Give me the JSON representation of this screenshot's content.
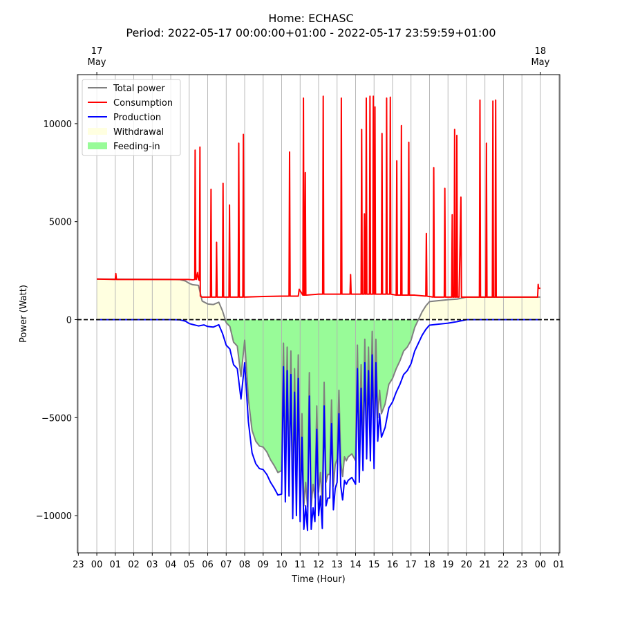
{
  "title": "Home: ECHASC",
  "subtitle": "Period: 2022-05-17 00:00:00+01:00 - 2022-05-17 23:59:59+01:00",
  "chart_data": {
    "type": "line",
    "xlabel": "Time (Hour)",
    "ylabel": "Power (Watt)",
    "xlim": [
      -1.05,
      25.05
    ],
    "ylim": [
      -11900,
      12500
    ],
    "x_ticks": [
      {
        "x": -1,
        "label": "23"
      },
      {
        "x": 0,
        "label": "00"
      },
      {
        "x": 1,
        "label": "01"
      },
      {
        "x": 2,
        "label": "02"
      },
      {
        "x": 3,
        "label": "03"
      },
      {
        "x": 4,
        "label": "04"
      },
      {
        "x": 5,
        "label": "05"
      },
      {
        "x": 6,
        "label": "06"
      },
      {
        "x": 7,
        "label": "07"
      },
      {
        "x": 8,
        "label": "08"
      },
      {
        "x": 9,
        "label": "09"
      },
      {
        "x": 10,
        "label": "10"
      },
      {
        "x": 11,
        "label": "11"
      },
      {
        "x": 12,
        "label": "12"
      },
      {
        "x": 13,
        "label": "13"
      },
      {
        "x": 14,
        "label": "14"
      },
      {
        "x": 15,
        "label": "15"
      },
      {
        "x": 16,
        "label": "16"
      },
      {
        "x": 17,
        "label": "17"
      },
      {
        "x": 18,
        "label": "18"
      },
      {
        "x": 19,
        "label": "19"
      },
      {
        "x": 20,
        "label": "20"
      },
      {
        "x": 21,
        "label": "21"
      },
      {
        "x": 22,
        "label": "22"
      },
      {
        "x": 23,
        "label": "23"
      },
      {
        "x": 24,
        "label": "00"
      },
      {
        "x": 25,
        "label": "01"
      }
    ],
    "top_ticks": [
      {
        "x": 0,
        "line1": "17",
        "line2": "May"
      },
      {
        "x": 24,
        "line1": "18",
        "line2": "May"
      }
    ],
    "y_ticks": [
      {
        "y": 10000,
        "label": "10000"
      },
      {
        "y": 5000,
        "label": "5000"
      },
      {
        "y": 0,
        "label": "0"
      },
      {
        "y": -5000,
        "label": "−5000"
      },
      {
        "y": -10000,
        "label": "−10000"
      }
    ],
    "grid": "vertical",
    "zero_line": true,
    "legend_position": "upper left",
    "legend": [
      {
        "label": "Total power",
        "kind": "line",
        "color": "#808080"
      },
      {
        "label": "Consumption",
        "kind": "line",
        "color": "#ff0000"
      },
      {
        "label": "Production",
        "kind": "line",
        "color": "#0000ff"
      },
      {
        "label": "Withdrawal",
        "kind": "fill",
        "color": "#ffffe0"
      },
      {
        "label": "Feeding-in",
        "kind": "fill",
        "color": "#98fb98"
      }
    ],
    "series": [
      {
        "name": "Consumption",
        "color": "#ff0000",
        "x": [
          0,
          1,
          1.03,
          1.06,
          2,
          3,
          4,
          4.95,
          5.2,
          5.3,
          5.32,
          5.35,
          5.38,
          5.45,
          5.5,
          5.55,
          5.58,
          5.6,
          5.7,
          6.15,
          6.18,
          6.21,
          6.45,
          6.48,
          6.51,
          6.8,
          6.83,
          6.86,
          7.15,
          7.18,
          7.21,
          7.65,
          7.68,
          7.71,
          7.9,
          7.93,
          7.96,
          9,
          10,
          10.4,
          10.43,
          10.46,
          10.9,
          10.95,
          11.15,
          11.18,
          11.21,
          11.25,
          11.28,
          11.31,
          12,
          12.22,
          12.25,
          12.28,
          13,
          13.2,
          13.23,
          13.26,
          13.7,
          13.73,
          13.76,
          14.3,
          14.33,
          14.36,
          14.45,
          14.48,
          14.51,
          14.55,
          14.58,
          14.61,
          14.75,
          14.78,
          14.81,
          14.93,
          14.96,
          14.99,
          15.02,
          15.05,
          15.08,
          15.4,
          15.43,
          15.46,
          15.65,
          15.68,
          15.71,
          15.85,
          15.88,
          15.91,
          16.2,
          16.23,
          16.26,
          16.45,
          16.48,
          16.51,
          16.85,
          16.88,
          16.91,
          17.2,
          17.8,
          17.83,
          17.86,
          18.2,
          18.23,
          18.26,
          18.8,
          18.83,
          18.86,
          19.2,
          19.23,
          19.26,
          19.33,
          19.36,
          19.39,
          19.45,
          19.48,
          19.51,
          19.6,
          19.7,
          19.73,
          19.76,
          20,
          20.7,
          20.73,
          20.76,
          21.05,
          21.08,
          21.11,
          21.4,
          21.43,
          21.46,
          21.55,
          21.58,
          21.61,
          22,
          23,
          23.85,
          23.88,
          23.9,
          24
        ],
        "y": [
          2070,
          2050,
          2350,
          2050,
          2050,
          2050,
          2050,
          2050,
          2030,
          2050,
          8650,
          2300,
          2050,
          2400,
          2050,
          2000,
          8800,
          1200,
          1150,
          1150,
          6650,
          1150,
          1150,
          3950,
          1150,
          1150,
          6950,
          1150,
          1150,
          5850,
          1150,
          1150,
          9000,
          1150,
          1150,
          9450,
          1150,
          1180,
          1200,
          1200,
          8550,
          1200,
          1200,
          1550,
          1250,
          11300,
          1250,
          1250,
          7500,
          1250,
          1300,
          1300,
          11400,
          1300,
          1300,
          1300,
          11300,
          1300,
          1300,
          2300,
          1300,
          1300,
          9700,
          1300,
          1300,
          5400,
          1300,
          1300,
          11300,
          1300,
          1300,
          11400,
          1300,
          1300,
          11400,
          1300,
          1300,
          10850,
          1300,
          1300,
          9500,
          1300,
          1300,
          11300,
          1300,
          1300,
          11350,
          1300,
          1250,
          8100,
          1250,
          1250,
          9900,
          1250,
          1250,
          9050,
          1250,
          1250,
          1200,
          4400,
          1200,
          1150,
          7750,
          1150,
          1150,
          6700,
          1150,
          1150,
          5350,
          1150,
          1150,
          9700,
          1150,
          1150,
          9400,
          1150,
          1150,
          6250,
          1150,
          1150,
          1150,
          1150,
          11200,
          1150,
          1150,
          9000,
          1150,
          1150,
          11150,
          1150,
          1150,
          11200,
          1150,
          1150,
          1150,
          1150,
          1800,
          1600,
          1600
        ]
      },
      {
        "name": "Production",
        "color": "#0000ff",
        "x": [
          0,
          4,
          4.5,
          4.8,
          5,
          5.2,
          5.5,
          5.8,
          6,
          6.3,
          6.6,
          6.8,
          7,
          7.2,
          7.4,
          7.6,
          7.8,
          8,
          8.2,
          8.4,
          8.6,
          8.8,
          9,
          9.2,
          9.4,
          9.6,
          9.8,
          10,
          10.1,
          10.2,
          10.3,
          10.4,
          10.5,
          10.6,
          10.7,
          10.8,
          10.9,
          11,
          11.1,
          11.2,
          11.3,
          11.4,
          11.5,
          11.6,
          11.7,
          11.8,
          11.9,
          12,
          12.1,
          12.2,
          12.3,
          12.4,
          12.5,
          12.6,
          12.7,
          12.8,
          12.9,
          13,
          13.1,
          13.2,
          13.3,
          13.4,
          13.5,
          13.6,
          13.8,
          14,
          14.1,
          14.2,
          14.3,
          14.4,
          14.5,
          14.6,
          14.7,
          14.8,
          14.9,
          15,
          15.1,
          15.2,
          15.3,
          15.4,
          15.6,
          15.8,
          16,
          16.2,
          16.4,
          16.6,
          16.8,
          17,
          17.2,
          17.4,
          17.6,
          17.8,
          18,
          18.5,
          19,
          19.5,
          20,
          24
        ],
        "y": [
          0,
          0,
          -10,
          -80,
          -200,
          -250,
          -320,
          -270,
          -350,
          -380,
          -260,
          -700,
          -1300,
          -1500,
          -2300,
          -2500,
          -4050,
          -2200,
          -5200,
          -6800,
          -7350,
          -7600,
          -7650,
          -7900,
          -8300,
          -8600,
          -8950,
          -8900,
          -2400,
          -9300,
          -2600,
          -9000,
          -2800,
          -10150,
          -3700,
          -10000,
          -3000,
          -10300,
          -6000,
          -10700,
          -9500,
          -10750,
          -3900,
          -10700,
          -9600,
          -10300,
          -5600,
          -10000,
          -9000,
          -10650,
          -4400,
          -9500,
          -9100,
          -9100,
          -5300,
          -9700,
          -8600,
          -8300,
          -4800,
          -8500,
          -9200,
          -8200,
          -8400,
          -8200,
          -8050,
          -8400,
          -2500,
          -8300,
          -3500,
          -7700,
          -2200,
          -7100,
          -2600,
          -7200,
          -1800,
          -7600,
          -2200,
          -6200,
          -4800,
          -6000,
          -5500,
          -4500,
          -4200,
          -3700,
          -3300,
          -2800,
          -2600,
          -2250,
          -1600,
          -1200,
          -800,
          -500,
          -280,
          -230,
          -180,
          -100,
          0,
          0
        ]
      },
      {
        "name": "Total power",
        "color": "#808080",
        "x": [
          0,
          4,
          4.5,
          4.8,
          5,
          5.2,
          5.5,
          5.7,
          6,
          6.3,
          6.6,
          6.8,
          7,
          7.2,
          7.4,
          7.6,
          7.8,
          8,
          8.2,
          8.4,
          8.6,
          8.8,
          9,
          9.2,
          9.4,
          9.6,
          9.8,
          10,
          10.1,
          10.2,
          10.3,
          10.4,
          10.5,
          10.6,
          10.7,
          10.8,
          10.9,
          11,
          11.1,
          11.2,
          11.3,
          11.4,
          11.5,
          11.6,
          11.7,
          11.8,
          11.9,
          12,
          12.1,
          12.2,
          12.3,
          12.4,
          12.5,
          12.6,
          12.7,
          12.8,
          12.9,
          13,
          13.1,
          13.2,
          13.3,
          13.4,
          13.5,
          13.6,
          13.8,
          14,
          14.1,
          14.2,
          14.3,
          14.4,
          14.5,
          14.6,
          14.7,
          14.8,
          14.9,
          15,
          15.1,
          15.2,
          15.3,
          15.4,
          15.6,
          15.8,
          16,
          16.2,
          16.4,
          16.6,
          16.8,
          17,
          17.2,
          17.4,
          17.6,
          17.8,
          18,
          18.5,
          19,
          19.5,
          20,
          24
        ],
        "y": [
          2070,
          2050,
          2040,
          1970,
          1850,
          1780,
          1750,
          950,
          800,
          770,
          890,
          450,
          -150,
          -350,
          -1150,
          -1350,
          -2900,
          -1050,
          -4050,
          -5650,
          -6200,
          -6450,
          -6500,
          -6750,
          -7150,
          -7450,
          -7800,
          -7700,
          -1200,
          -8100,
          -1400,
          -7800,
          -1600,
          -8950,
          -2500,
          -8800,
          -1800,
          -9100,
          -4800,
          -9500,
          -8300,
          -9550,
          -2700,
          -9500,
          -8400,
          -9100,
          -4400,
          -8800,
          -7800,
          -9450,
          -3200,
          -8300,
          -7900,
          -7900,
          -4100,
          -8500,
          -7400,
          -7100,
          -3600,
          -7300,
          -8000,
          -7000,
          -7200,
          -7000,
          -6850,
          -7200,
          -1300,
          -7100,
          -2300,
          -6500,
          -1000,
          -5900,
          -1400,
          -6000,
          -600,
          -6400,
          -1000,
          -5000,
          -3600,
          -4800,
          -4300,
          -3300,
          -3000,
          -2500,
          -2100,
          -1600,
          -1400,
          -1050,
          -400,
          0,
          400,
          700,
          920,
          970,
          1020,
          1050,
          1150,
          1150
        ]
      }
    ],
    "fills": [
      {
        "name": "Withdrawal",
        "color": "#ffffe0",
        "between": [
          "Total power",
          0
        ],
        "where": "positive"
      },
      {
        "name": "Feeding-in",
        "color": "#98fb98",
        "between": [
          "Total power",
          0
        ],
        "where": "negative"
      }
    ]
  }
}
